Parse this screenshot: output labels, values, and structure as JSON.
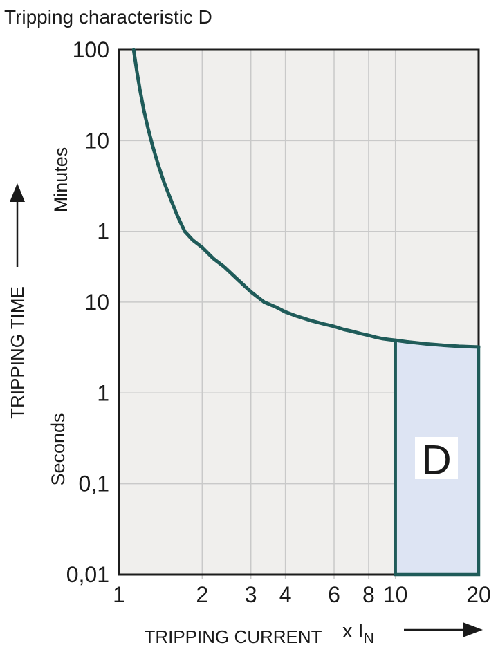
{
  "title": "Tripping characteristic D",
  "chart_data": {
    "type": "line",
    "title": "Tripping characteristic D",
    "x_axis": {
      "label": "TRIPPING CURRENT",
      "unit": "x I",
      "unit_sub": "N",
      "scale": "log",
      "range": [
        1,
        20
      ],
      "ticks": [
        {
          "value": 1,
          "label": "1"
        },
        {
          "value": 2,
          "label": "2"
        },
        {
          "value": 3,
          "label": "3"
        },
        {
          "value": 4,
          "label": "4"
        },
        {
          "value": 6,
          "label": "6"
        },
        {
          "value": 8,
          "label": "8"
        },
        {
          "value": 10,
          "label": "10"
        },
        {
          "value": 20,
          "label": "20"
        }
      ],
      "gridlines": [
        2,
        3,
        4,
        6,
        8,
        10
      ]
    },
    "y_axis": {
      "label": "TRIPPING TIME",
      "unit_upper": "Minutes",
      "unit_lower": "Seconds",
      "scale": "log",
      "range_seconds": [
        0.01,
        6000
      ],
      "ticks": [
        {
          "seconds": 6000,
          "label": "100"
        },
        {
          "seconds": 600,
          "label": "10"
        },
        {
          "seconds": 60,
          "label": "1"
        },
        {
          "seconds": 10,
          "label": "10"
        },
        {
          "seconds": 1,
          "label": "1"
        },
        {
          "seconds": 0.1,
          "label": "0,1"
        },
        {
          "seconds": 0.01,
          "label": "0,01"
        }
      ],
      "gridlines_seconds": [
        600,
        60,
        10,
        1,
        0.1
      ]
    },
    "series": [
      {
        "name": "tripping-curve",
        "points_x_multiple_vs_seconds": [
          [
            1.13,
            6000
          ],
          [
            1.16,
            3500
          ],
          [
            1.19,
            2200
          ],
          [
            1.23,
            1300
          ],
          [
            1.27,
            850
          ],
          [
            1.32,
            540
          ],
          [
            1.38,
            340
          ],
          [
            1.45,
            215
          ],
          [
            1.54,
            135
          ],
          [
            1.63,
            88
          ],
          [
            1.73,
            60
          ],
          [
            1.85,
            48
          ],
          [
            2.0,
            40
          ],
          [
            2.2,
            30
          ],
          [
            2.4,
            24.5
          ],
          [
            2.7,
            17.5
          ],
          [
            3.0,
            13
          ],
          [
            3.35,
            10
          ],
          [
            3.7,
            8.8
          ],
          [
            4.0,
            7.8
          ],
          [
            4.4,
            7.0
          ],
          [
            5.0,
            6.2
          ],
          [
            5.5,
            5.75
          ],
          [
            6.0,
            5.4
          ],
          [
            6.5,
            5.0
          ],
          [
            7.0,
            4.75
          ],
          [
            7.5,
            4.5
          ],
          [
            8.0,
            4.3
          ],
          [
            8.5,
            4.1
          ],
          [
            9.0,
            3.95
          ],
          [
            9.5,
            3.87
          ],
          [
            10.0,
            3.8
          ],
          [
            11.0,
            3.65
          ],
          [
            12.0,
            3.55
          ],
          [
            13.0,
            3.46
          ],
          [
            14.0,
            3.4
          ],
          [
            15.0,
            3.34
          ],
          [
            16.0,
            3.3
          ],
          [
            17.0,
            3.26
          ],
          [
            18.0,
            3.24
          ],
          [
            19.0,
            3.22
          ],
          [
            20.0,
            3.2
          ]
        ]
      }
    ],
    "region": {
      "label": "D",
      "x_from": 10,
      "x_to": 20,
      "bottom_seconds": 0.01,
      "top": "follows-curve"
    },
    "colors": {
      "curve": "#1f5b59",
      "region_fill": "#dde4f3",
      "region_border": "#1f5b59",
      "plot_bg": "#f0efed",
      "gridline": "#c9c9c9",
      "border": "#1c1c1c",
      "text": "#1a1a1a",
      "label_box": "#ffffff"
    }
  }
}
